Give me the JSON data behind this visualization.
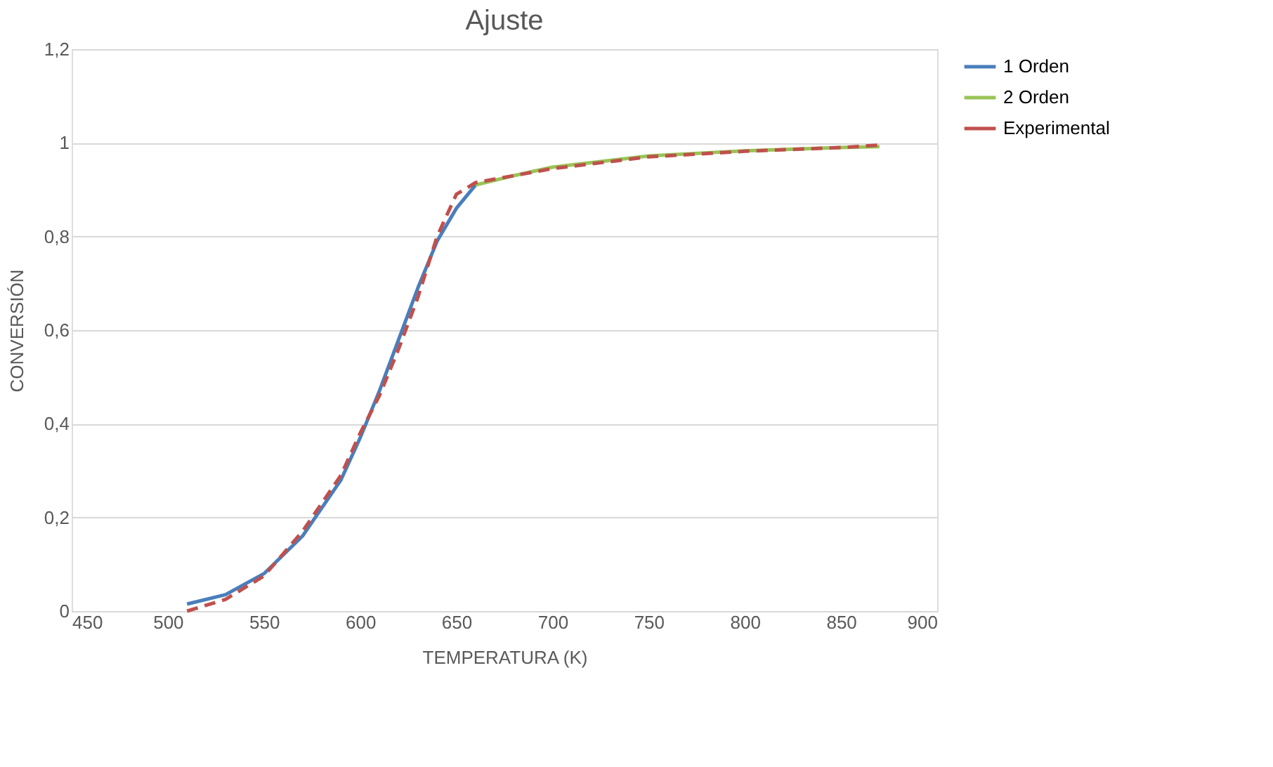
{
  "chart_data": {
    "type": "line",
    "title": "Ajuste",
    "xlabel": "TEMPERATURA  (K)",
    "ylabel": "CONVERSIÓN",
    "xlim": [
      450,
      900
    ],
    "xticks": [
      450,
      500,
      550,
      600,
      650,
      700,
      750,
      800,
      850,
      900
    ],
    "ylim": [
      0,
      1.2
    ],
    "yticks": [
      0,
      {
        "value": 0.2,
        "label": "0,2"
      },
      {
        "value": 0.4,
        "label": "0,4"
      },
      {
        "value": 0.6,
        "label": "0,6"
      },
      {
        "value": 0.8,
        "label": "0,8"
      },
      1,
      {
        "value": 1.2,
        "label": "1,2"
      }
    ],
    "grid": "y",
    "legend": "right",
    "marker": "none",
    "series": [
      {
        "name": "1 Orden",
        "color": "#4a7ebb",
        "line_style": "solid",
        "x": [
          510,
          530,
          550,
          570,
          590,
          600,
          610,
          620,
          630,
          640,
          650,
          660
        ],
        "values": [
          0.015,
          0.035,
          0.08,
          0.16,
          0.28,
          0.37,
          0.47,
          0.58,
          0.69,
          0.79,
          0.86,
          0.91
        ]
      },
      {
        "name": "2 Orden",
        "color": "#98c455",
        "line_style": "solid",
        "x": [
          660,
          680,
          700,
          750,
          800,
          850,
          870
        ],
        "values": [
          0.91,
          0.93,
          0.948,
          0.972,
          0.983,
          0.99,
          0.992
        ]
      },
      {
        "name": "Experimental",
        "color": "#c0504d",
        "line_style": "dashed",
        "x": [
          510,
          530,
          550,
          570,
          590,
          600,
          610,
          620,
          630,
          640,
          650,
          660,
          700,
          750,
          800,
          850,
          870
        ],
        "values": [
          0.0,
          0.025,
          0.075,
          0.17,
          0.29,
          0.38,
          0.46,
          0.56,
          0.67,
          0.8,
          0.89,
          0.915,
          0.945,
          0.97,
          0.982,
          0.99,
          0.995
        ]
      }
    ]
  }
}
